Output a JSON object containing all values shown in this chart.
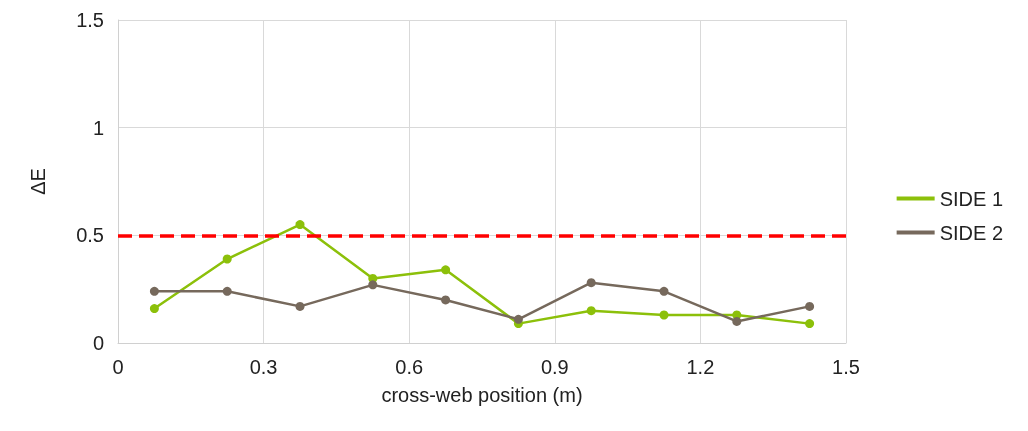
{
  "chart_data": {
    "type": "line",
    "xlabel": "cross-web position (m)",
    "ylabel": "ΔE",
    "x": [
      0.075,
      0.225,
      0.375,
      0.525,
      0.675,
      0.825,
      0.975,
      1.125,
      1.275,
      1.425
    ],
    "series": [
      {
        "name": "SIDE 1",
        "color": "#8cc00a",
        "values": [
          0.16,
          0.39,
          0.55,
          0.3,
          0.34,
          0.09,
          0.15,
          0.13,
          0.13,
          0.09
        ]
      },
      {
        "name": "SIDE 2",
        "color": "#76695c",
        "values": [
          0.24,
          0.24,
          0.17,
          0.27,
          0.2,
          0.11,
          0.28,
          0.24,
          0.1,
          0.17
        ]
      }
    ],
    "xlim": [
      0,
      1.5
    ],
    "xticks": [
      0,
      0.3,
      0.6,
      0.9,
      1.2,
      1.5
    ],
    "ylim": [
      0,
      1.5
    ],
    "yticks": [
      0,
      0.5,
      1,
      1.5
    ],
    "ref_lines": [
      {
        "axis": "y",
        "value": 0.5,
        "color": "#ff0000",
        "line_style": "dashed"
      }
    ],
    "grid": true,
    "legend": "right",
    "marker": "circle",
    "line_style": "solid"
  }
}
